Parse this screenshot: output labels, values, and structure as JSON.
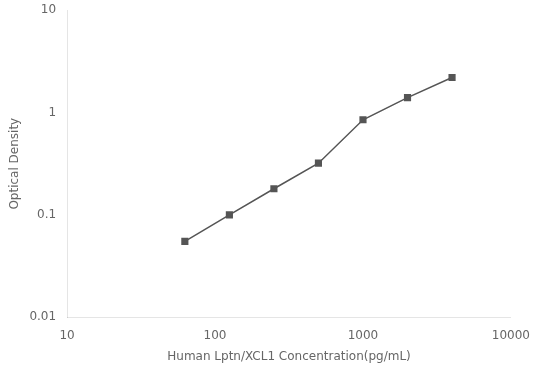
{
  "chart_data": {
    "type": "line",
    "x_label": "Human Lptn/XCL1 Concentration(pg/mL)",
    "y_label": "Optical Density",
    "x": [
      62.5,
      125,
      250,
      500,
      1000,
      2000,
      4000
    ],
    "values": [
      0.055,
      0.1,
      0.18,
      0.32,
      0.85,
      1.4,
      2.2
    ],
    "color": "#555555",
    "marker": "square",
    "log": true,
    "xlim": [
      10,
      10000
    ],
    "ylim": [
      0.01,
      10
    ],
    "xticks": [
      10,
      100,
      1000,
      10000
    ],
    "yticks": [
      0.01,
      0.1,
      1,
      10
    ],
    "grid": false
  }
}
